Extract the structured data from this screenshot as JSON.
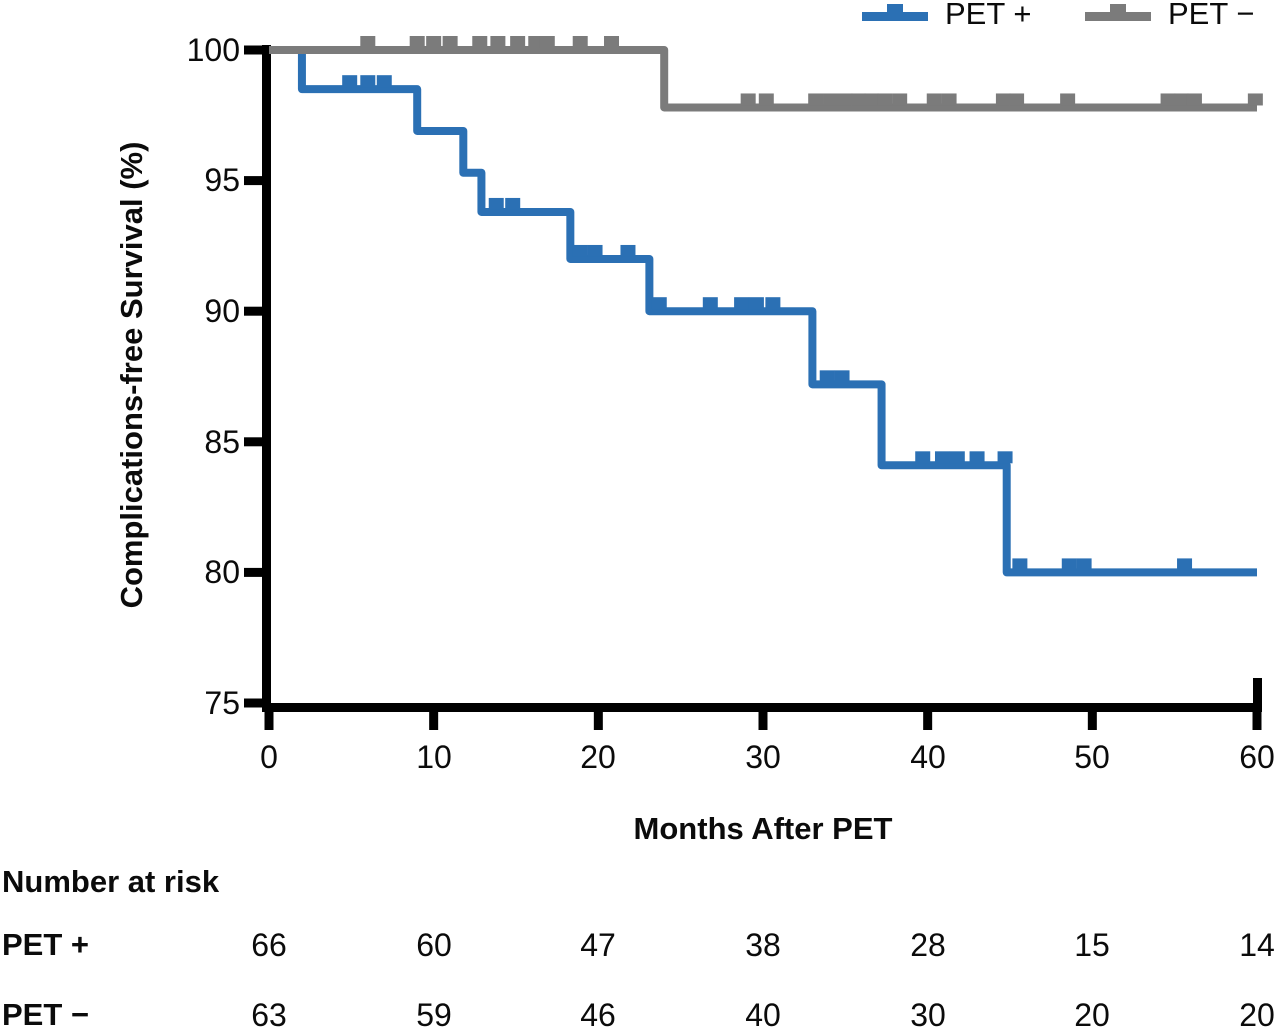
{
  "chart_data": {
    "type": "line",
    "subtype": "kaplan-meier-step",
    "xlabel": "Months After PET",
    "ylabel": "Complications-free Survival (%)",
    "xlim": [
      0,
      60
    ],
    "ylim": [
      75,
      100
    ],
    "x_ticks": [
      0,
      10,
      20,
      30,
      40,
      50,
      60
    ],
    "y_ticks": [
      100,
      95,
      90,
      85,
      80,
      75
    ],
    "grid": false,
    "legend_position": "top-right",
    "axis_color": "#000000",
    "series": [
      {
        "name": "PET +",
        "color": "#2b70b4",
        "steps": [
          [
            0,
            100
          ],
          [
            2,
            98.5
          ],
          [
            9,
            96.9
          ],
          [
            11.8,
            95.3
          ],
          [
            12.9,
            93.8
          ],
          [
            18.3,
            92.0
          ],
          [
            23.1,
            90.0
          ],
          [
            33,
            87.2
          ],
          [
            37.2,
            84.1
          ],
          [
            44.8,
            80.0
          ]
        ],
        "end_t": 60,
        "censor_marks": [
          [
            4.9,
            98.5
          ],
          [
            6,
            98.5
          ],
          [
            7,
            98.5
          ],
          [
            13.8,
            93.8
          ],
          [
            14.8,
            93.8
          ],
          [
            18.9,
            92.0
          ],
          [
            19.8,
            92.0
          ],
          [
            21.8,
            92.0
          ],
          [
            23.7,
            90.0
          ],
          [
            26.8,
            90.0
          ],
          [
            28.7,
            90.0
          ],
          [
            29.6,
            90.0
          ],
          [
            30.6,
            90.0
          ],
          [
            33.9,
            87.2
          ],
          [
            34.8,
            87.2
          ],
          [
            39.7,
            84.1
          ],
          [
            40.9,
            84.1
          ],
          [
            41.8,
            84.1
          ],
          [
            43,
            84.1
          ],
          [
            44.7,
            84.1
          ],
          [
            45.6,
            80.0
          ],
          [
            48.6,
            80.0
          ],
          [
            49.5,
            80.0
          ],
          [
            55.6,
            80.0
          ]
        ]
      },
      {
        "name": "PET −",
        "color": "#7b7b7b",
        "steps": [
          [
            0,
            100
          ],
          [
            24,
            97.8
          ]
        ],
        "end_t": 60,
        "censor_marks": [
          [
            6,
            100
          ],
          [
            9,
            100
          ],
          [
            10,
            100
          ],
          [
            11,
            100
          ],
          [
            12.8,
            100
          ],
          [
            13.9,
            100
          ],
          [
            15.1,
            100
          ],
          [
            16.2,
            100
          ],
          [
            16.9,
            100
          ],
          [
            18.9,
            100
          ],
          [
            20.8,
            100
          ],
          [
            29.1,
            97.8
          ],
          [
            30.2,
            97.8
          ],
          [
            33.2,
            97.8
          ],
          [
            34.1,
            97.8
          ],
          [
            35,
            97.8
          ],
          [
            35.8,
            97.8
          ],
          [
            36.6,
            97.8
          ],
          [
            37.4,
            97.8
          ],
          [
            38.3,
            97.8
          ],
          [
            40.4,
            97.8
          ],
          [
            41.3,
            97.8
          ],
          [
            44.6,
            97.8
          ],
          [
            45.4,
            97.8
          ],
          [
            48.5,
            97.8
          ],
          [
            54.6,
            97.8
          ],
          [
            55.4,
            97.8
          ],
          [
            56.2,
            97.8
          ],
          [
            59.9,
            97.8
          ]
        ]
      }
    ],
    "risk_table": {
      "title": "Number at risk",
      "times": [
        0,
        10,
        20,
        30,
        40,
        50,
        60
      ],
      "rows": [
        {
          "label": "PET +",
          "values": [
            66,
            60,
            47,
            38,
            28,
            15,
            14
          ]
        },
        {
          "label": "PET −",
          "values": [
            63,
            59,
            46,
            40,
            30,
            20,
            20
          ]
        }
      ]
    }
  }
}
